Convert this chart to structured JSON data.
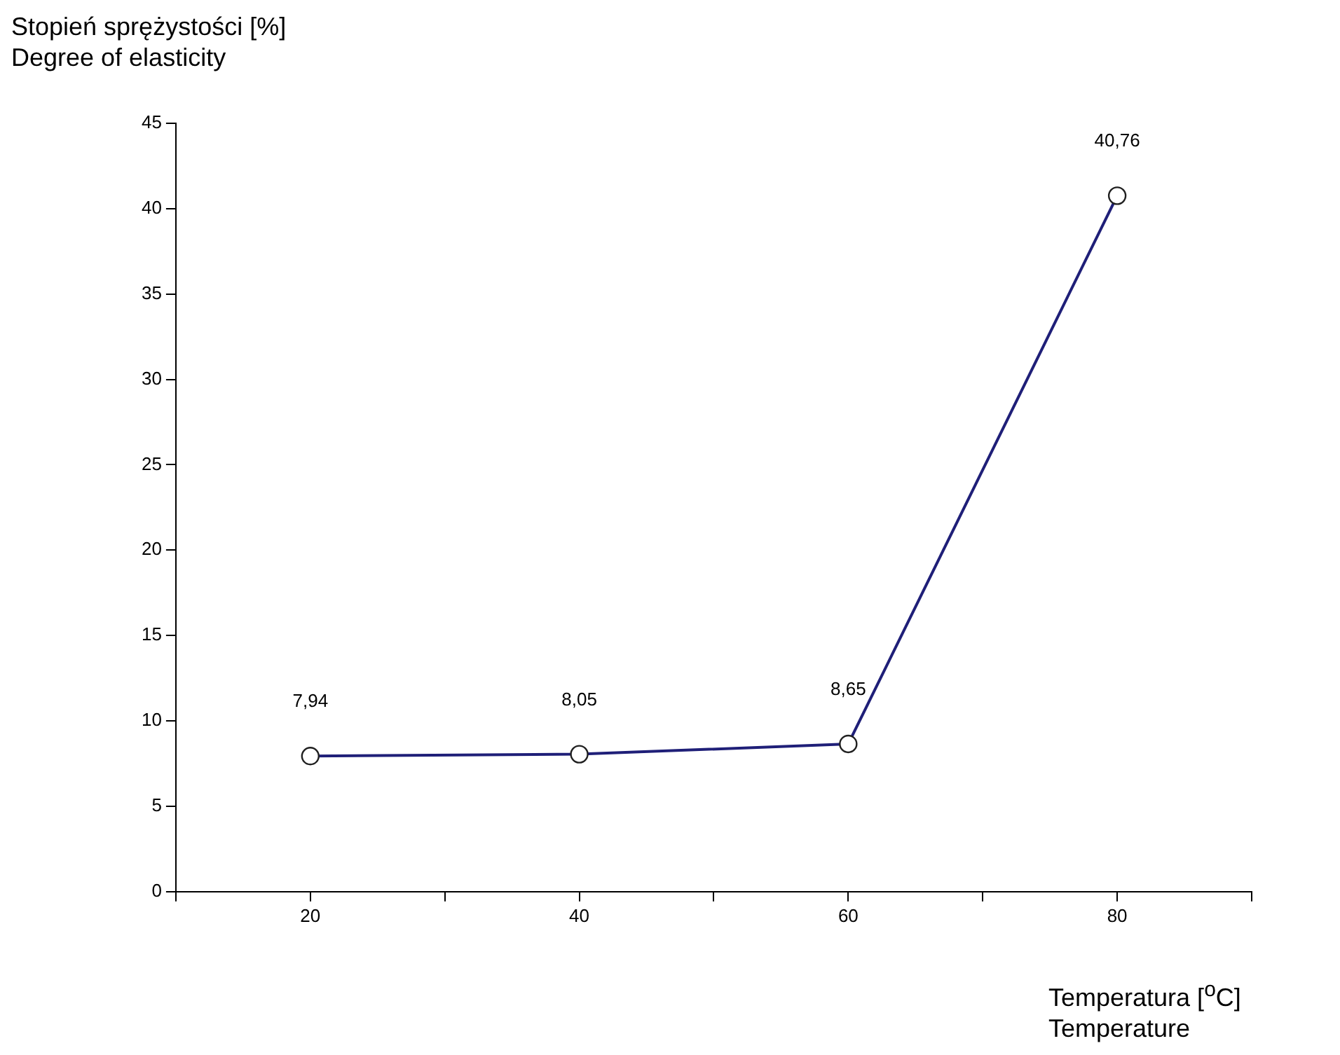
{
  "chart_data": {
    "type": "line",
    "ylabel": "Stopień sprężystości [%]\nDegree of elasticity",
    "xlabel": "Temperatura [$^{o}$C]\nTemperature",
    "x": [
      20,
      40,
      60,
      80
    ],
    "series": [
      {
        "color": "#1f1f78",
        "values": [
          7.94,
          8.05,
          8.65,
          40.76
        ],
        "value_labels": [
          "7,94",
          "8,05",
          "8,65",
          "40,76"
        ]
      }
    ],
    "xlim": [
      10,
      90
    ],
    "xticks": [
      {
        "value": 10,
        "label": null
      },
      20,
      {
        "value": 30,
        "label": null
      },
      40,
      {
        "value": 50,
        "label": null
      },
      60,
      {
        "value": 70,
        "label": null
      },
      80,
      {
        "value": 90,
        "label": null
      }
    ],
    "ylim": [
      0,
      45
    ],
    "yticks": [
      0,
      5,
      10,
      15,
      20,
      25,
      30,
      35,
      40,
      45
    ],
    "marker": "circle",
    "line_style": "solid"
  }
}
